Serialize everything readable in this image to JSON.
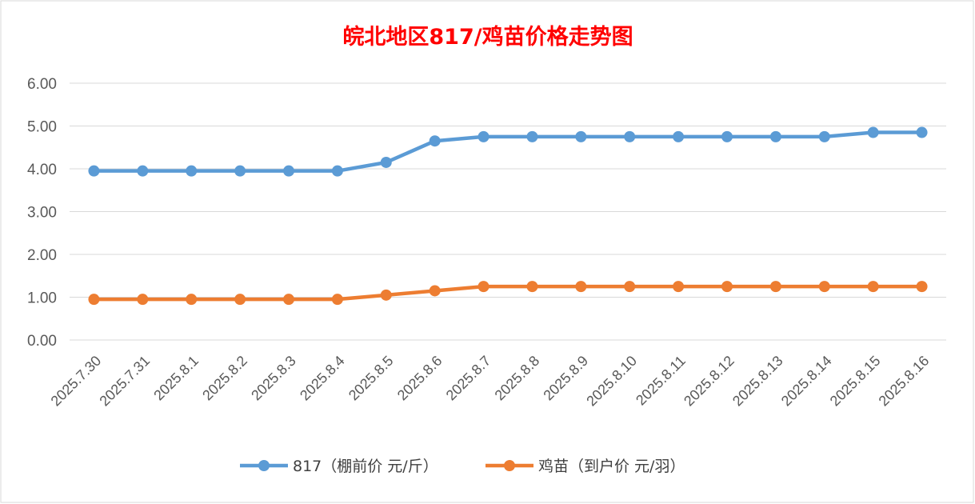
{
  "chart_data": {
    "type": "line",
    "title": "皖北地区817/鸡苗价格走势图",
    "title_color": "#ff0000",
    "categories": [
      "2025.7.30",
      "2025.7.31",
      "2025.8.1",
      "2025.8.2",
      "2025.8.3",
      "2025.8.4",
      "2025.8.5",
      "2025.8.6",
      "2025.8.7",
      "2025.8.8",
      "2025.8.9",
      "2025.8.10",
      "2025.8.11",
      "2025.8.12",
      "2025.8.13",
      "2025.8.14",
      "2025.8.15",
      "2025.8.16"
    ],
    "series": [
      {
        "name": "817（棚前价 元/斤）",
        "color": "#5b9bd5",
        "values": [
          3.95,
          3.95,
          3.95,
          3.95,
          3.95,
          3.95,
          4.15,
          4.65,
          4.75,
          4.75,
          4.75,
          4.75,
          4.75,
          4.75,
          4.75,
          4.75,
          4.85,
          4.85
        ]
      },
      {
        "name": "鸡苗（到户价 元/羽）",
        "color": "#ed7d31",
        "values": [
          0.95,
          0.95,
          0.95,
          0.95,
          0.95,
          0.95,
          1.05,
          1.15,
          1.25,
          1.25,
          1.25,
          1.25,
          1.25,
          1.25,
          1.25,
          1.25,
          1.25,
          1.25
        ]
      }
    ],
    "y_ticks": [
      "0.00",
      "1.00",
      "2.00",
      "3.00",
      "4.00",
      "5.00",
      "6.00"
    ],
    "ylim": [
      0,
      6
    ],
    "grid": true,
    "legend_position": "bottom"
  }
}
